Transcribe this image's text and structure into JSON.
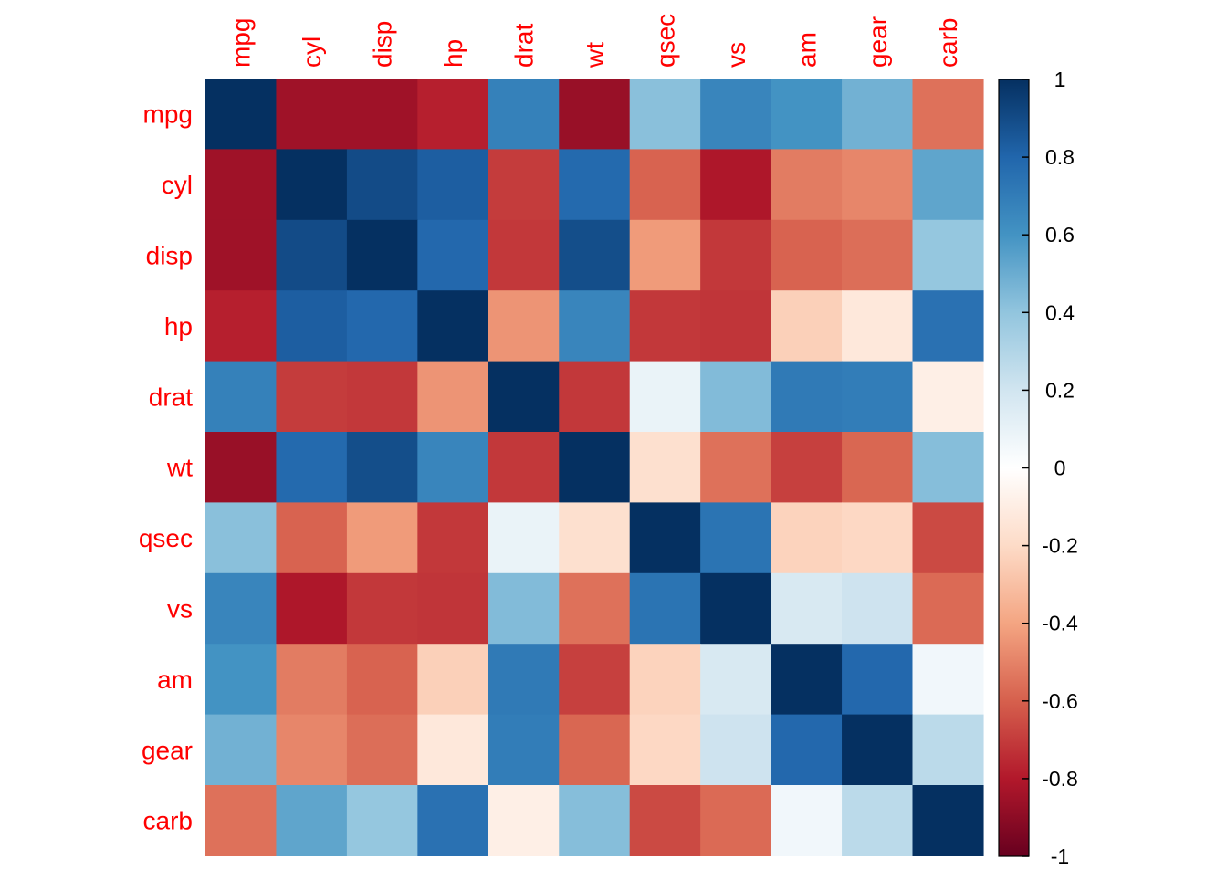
{
  "chart_data": {
    "type": "heatmap",
    "variables": [
      "mpg",
      "cyl",
      "disp",
      "hp",
      "drat",
      "wt",
      "qsec",
      "vs",
      "am",
      "gear",
      "carb"
    ],
    "matrix": [
      [
        1.0,
        -0.85,
        -0.85,
        -0.78,
        0.68,
        -0.87,
        0.42,
        0.66,
        0.6,
        0.48,
        -0.55
      ],
      [
        -0.85,
        1.0,
        0.9,
        0.83,
        -0.7,
        0.78,
        -0.59,
        -0.81,
        -0.52,
        -0.49,
        0.53
      ],
      [
        -0.85,
        0.9,
        1.0,
        0.79,
        -0.71,
        0.89,
        -0.43,
        -0.71,
        -0.59,
        -0.56,
        0.39
      ],
      [
        -0.78,
        0.83,
        0.79,
        1.0,
        -0.45,
        0.66,
        -0.71,
        -0.72,
        -0.24,
        -0.13,
        0.75
      ],
      [
        0.68,
        -0.7,
        -0.71,
        -0.45,
        1.0,
        -0.71,
        0.09,
        0.44,
        0.71,
        0.7,
        -0.09
      ],
      [
        -0.87,
        0.78,
        0.89,
        0.66,
        -0.71,
        1.0,
        -0.17,
        -0.55,
        -0.69,
        -0.58,
        0.43
      ],
      [
        0.42,
        -0.59,
        -0.43,
        -0.71,
        0.09,
        -0.17,
        1.0,
        0.74,
        -0.23,
        -0.21,
        -0.66
      ],
      [
        0.66,
        -0.81,
        -0.71,
        -0.72,
        0.44,
        -0.55,
        0.74,
        1.0,
        0.17,
        0.21,
        -0.57
      ],
      [
        0.6,
        -0.52,
        -0.59,
        -0.24,
        0.71,
        -0.69,
        -0.23,
        0.17,
        1.0,
        0.79,
        0.06
      ],
      [
        0.48,
        -0.49,
        -0.56,
        -0.13,
        0.7,
        -0.58,
        -0.21,
        0.21,
        0.79,
        1.0,
        0.27
      ],
      [
        -0.55,
        0.53,
        0.39,
        0.75,
        -0.09,
        0.43,
        -0.66,
        -0.57,
        0.06,
        0.27,
        1.0
      ]
    ],
    "colorbar": {
      "range": [
        -1,
        1
      ],
      "ticks": [
        "1",
        "0.8",
        "0.6",
        "0.4",
        "0.2",
        "0",
        "-0.2",
        "-0.4",
        "-0.6",
        "-0.8",
        "-1"
      ],
      "palette": [
        "#67001F",
        "#B2182B",
        "#D6604D",
        "#F4A582",
        "#FDDBC7",
        "#FFFFFF",
        "#D1E5F0",
        "#92C5DE",
        "#4393C3",
        "#2166AC",
        "#053061"
      ]
    },
    "label_color": "#FF0000",
    "grid": false,
    "legend": "right"
  }
}
